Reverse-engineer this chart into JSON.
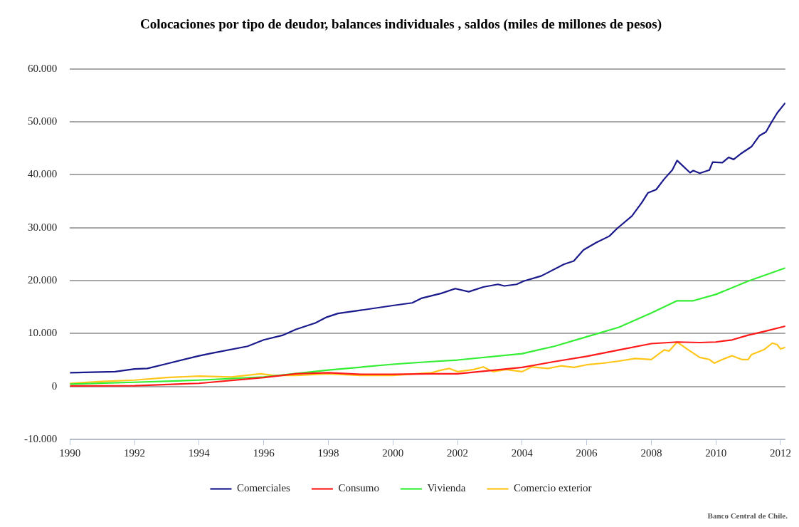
{
  "chart_data": {
    "type": "line",
    "title": "Colocaciones por tipo de deudor, balances individuales , saldos (miles de millones de pesos)",
    "xlim": [
      1990,
      2012.15
    ],
    "xticks": [
      1990,
      1992,
      1994,
      1996,
      1998,
      2000,
      2002,
      2004,
      2006,
      2008,
      2010,
      2012
    ],
    "ylim": [
      -10000,
      60000
    ],
    "yticks": [
      {
        "value": -10000,
        "label": "-10.000"
      },
      {
        "value": 0,
        "label": "0"
      },
      {
        "value": 10000,
        "label": "10.000"
      },
      {
        "value": 20000,
        "label": "20.000"
      },
      {
        "value": 30000,
        "label": "30.000"
      },
      {
        "value": 40000,
        "label": "40.000"
      },
      {
        "value": 50000,
        "label": "50.000"
      },
      {
        "value": 60000,
        "label": "60.000"
      }
    ],
    "grid": "y",
    "legend": "bottom",
    "marker": "none",
    "line_style": "solid",
    "annotations": [
      "Banco Central de Chile."
    ],
    "series": [
      {
        "name": "Comerciales",
        "color": "#1a1a8c",
        "x": [
          1990,
          1991.4,
          1992,
          1992.4,
          1993,
          1994,
          1994.4,
          1995.5,
          1996,
          1996.6,
          1997,
          1997.6,
          1997.95,
          1998.3,
          1999,
          2000,
          2000.6,
          2000.9,
          2001.5,
          2001.93,
          2002.35,
          2002.8,
          2003.25,
          2003.45,
          2003.83,
          2004.05,
          2004.6,
          2005.3,
          2005.6,
          2005.9,
          2006.3,
          2006.7,
          2006.95,
          2007.4,
          2007.7,
          2007.9,
          2008.15,
          2008.4,
          2008.65,
          2008.8,
          2009.2,
          2009.3,
          2009.5,
          2009.8,
          2009.9,
          2010.2,
          2010.4,
          2010.55,
          2010.8,
          2011.1,
          2011.35,
          2011.55,
          2011.7,
          2011.9,
          2012.15
        ],
        "values": [
          2600,
          2800,
          3300,
          3400,
          4300,
          5800,
          6300,
          7600,
          8800,
          9700,
          10800,
          12000,
          13100,
          13800,
          14400,
          15300,
          15800,
          16700,
          17600,
          18500,
          17900,
          18800,
          19300,
          19000,
          19300,
          19900,
          20900,
          23100,
          23700,
          25800,
          27200,
          28400,
          29900,
          32200,
          34700,
          36600,
          37200,
          39200,
          40900,
          42700,
          40400,
          40800,
          40300,
          40900,
          42400,
          42300,
          43300,
          42900,
          44100,
          45300,
          47400,
          48100,
          49700,
          51700,
          53600
        ]
      },
      {
        "name": "Consumo",
        "color": "#ff1a1a",
        "x": [
          1990,
          1992,
          1994,
          1996,
          1997,
          1998,
          1999,
          2000,
          2001.2,
          2002,
          2003,
          2004,
          2005,
          2006,
          2007,
          2008,
          2008.8,
          2009.5,
          2010,
          2010.5,
          2011,
          2011.5,
          2012.15
        ],
        "values": [
          100,
          150,
          600,
          1700,
          2400,
          2600,
          2300,
          2300,
          2400,
          2400,
          3000,
          3600,
          4700,
          5700,
          6900,
          8100,
          8400,
          8300,
          8400,
          8800,
          9700,
          10400,
          11400
        ]
      },
      {
        "name": "Vivienda",
        "color": "#33ee33",
        "x": [
          1990,
          1992,
          1994,
          1996,
          1998,
          2000,
          2001.2,
          2002,
          2004,
          2005,
          2006,
          2007,
          2008,
          2008.8,
          2009.3,
          2010,
          2011,
          2012.15
        ],
        "values": [
          450,
          800,
          1200,
          1800,
          3100,
          4200,
          4700,
          5000,
          6200,
          7600,
          9400,
          11200,
          13900,
          16200,
          16200,
          17400,
          19900,
          22400
        ]
      },
      {
        "name": "Comercio exterior",
        "color": "#ffc61a",
        "x": [
          1990,
          1991,
          1992,
          1993,
          1994,
          1995,
          1995.9,
          1996.3,
          1997,
          1998,
          1999,
          2000,
          2001.2,
          2001.5,
          2001.75,
          2002,
          2002.5,
          2002.8,
          2003.1,
          2003.5,
          2004,
          2004.3,
          2004.8,
          2005.2,
          2005.6,
          2006,
          2006.5,
          2007,
          2007.5,
          2008,
          2008.4,
          2008.55,
          2008.8,
          2009.15,
          2009.5,
          2009.8,
          2009.95,
          2010.2,
          2010.5,
          2010.8,
          2011,
          2011.1,
          2011.5,
          2011.75,
          2011.9,
          2012,
          2012.15
        ],
        "values": [
          600,
          950,
          1200,
          1700,
          1950,
          1800,
          2400,
          2100,
          2100,
          2400,
          2100,
          2100,
          2600,
          3100,
          3400,
          2800,
          3200,
          3700,
          2800,
          3200,
          2800,
          3700,
          3400,
          3900,
          3600,
          4100,
          4400,
          4800,
          5300,
          5100,
          6900,
          6700,
          8400,
          6900,
          5500,
          5100,
          4400,
          5100,
          5800,
          5100,
          5100,
          6000,
          7000,
          8200,
          7900,
          7100,
          7400
        ]
      }
    ]
  }
}
